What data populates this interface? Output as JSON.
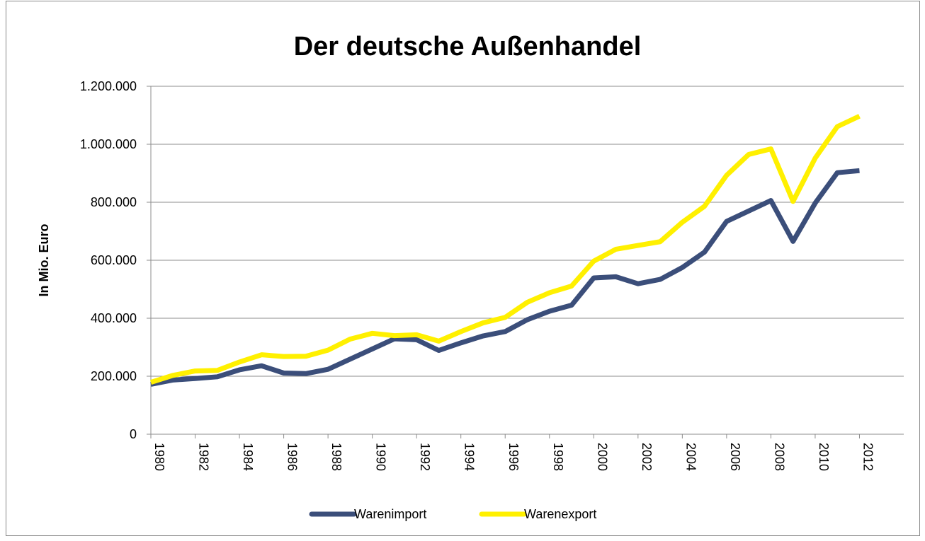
{
  "chart_data": {
    "type": "line",
    "title": "Der deutsche Außenhandel",
    "y_label": "In Mio. Euro",
    "x": [
      1980,
      1981,
      1982,
      1983,
      1984,
      1985,
      1986,
      1987,
      1988,
      1989,
      1990,
      1991,
      1992,
      1993,
      1994,
      1995,
      1996,
      1997,
      1998,
      1999,
      2000,
      2001,
      2002,
      2003,
      2004,
      2005,
      2006,
      2007,
      2008,
      2009,
      2010,
      2011,
      2012
    ],
    "xlim": [
      1980,
      2014
    ],
    "xticks": [
      1980,
      1982,
      1984,
      1986,
      1988,
      1990,
      1992,
      1994,
      1996,
      1998,
      2000,
      2002,
      2004,
      2006,
      2008,
      2010,
      2012
    ],
    "ylim": [
      0,
      1200000
    ],
    "yticks": [
      0,
      {
        "value": 200000,
        "label": "200.000"
      },
      {
        "value": 400000,
        "label": "400.000"
      },
      {
        "value": 600000,
        "label": "600.000"
      },
      {
        "value": 800000,
        "label": "800.000"
      },
      {
        "value": 1000000,
        "label": "1.000.000"
      },
      {
        "value": 1200000,
        "label": "1.200.000"
      }
    ],
    "grid": true,
    "legend": "bottom",
    "series": [
      {
        "name": "Warenimport",
        "color": "#3b4e7a",
        "values": [
          172000,
          187000,
          192000,
          198000,
          222000,
          236000,
          211000,
          209000,
          224000,
          259000,
          294000,
          329000,
          326000,
          289000,
          315000,
          339000,
          354000,
          395000,
          424000,
          445000,
          539000,
          543000,
          519000,
          534000,
          575000,
          628000,
          734000,
          770000,
          806000,
          665000,
          797000,
          902000,
          909000
        ]
      },
      {
        "name": "Warenexport",
        "color": "#fff000",
        "values": [
          179000,
          203000,
          218000,
          220000,
          249000,
          274000,
          268000,
          269000,
          290000,
          328000,
          348000,
          340000,
          343000,
          321000,
          354000,
          384000,
          403000,
          455000,
          488000,
          511000,
          597000,
          638000,
          651000,
          664000,
          731000,
          786000,
          893000,
          965000,
          984000,
          803000,
          952000,
          1061000,
          1097000
        ]
      }
    ]
  }
}
